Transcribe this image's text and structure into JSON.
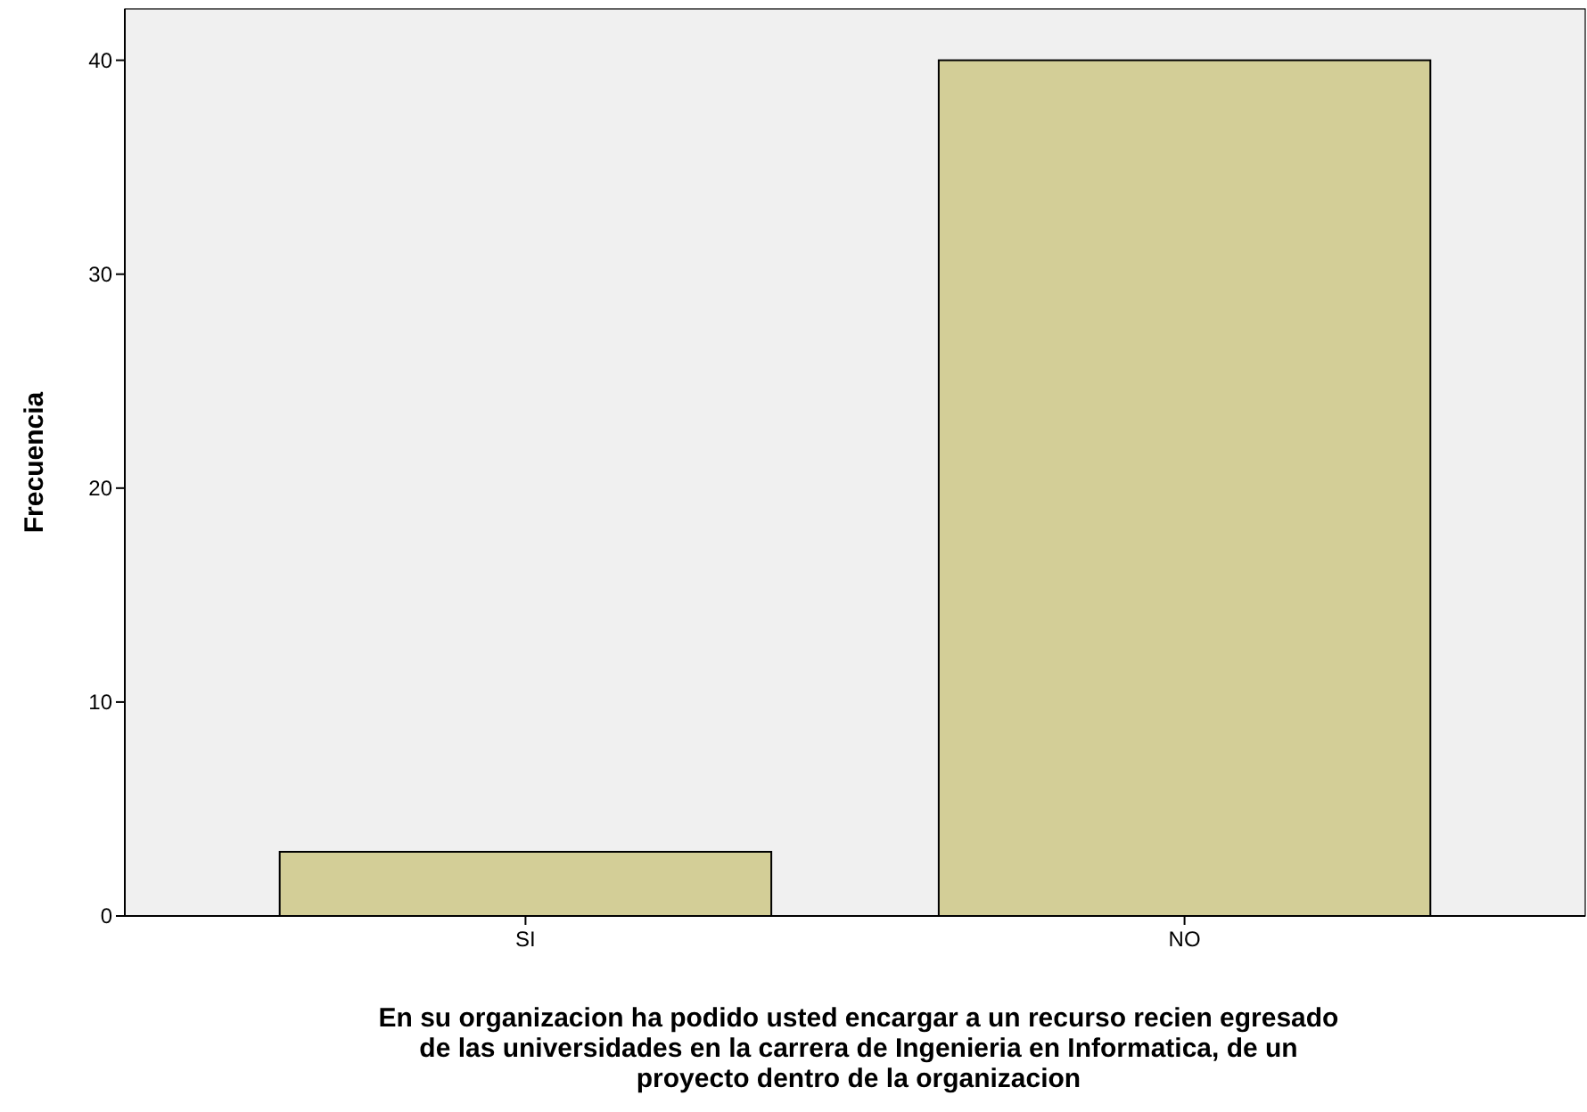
{
  "chart_data": {
    "type": "bar",
    "xlabel": "En su organizacion ha podido usted encargar a un recurso recien egresado de las universidades en la carrera de Ingenieria en Informatica, de un proyecto dentro de la organizacion",
    "ylabel": "Frecuencia",
    "categories": [
      "SI",
      "NO"
    ],
    "values": [
      3,
      40
    ],
    "color": "#d3ce97",
    "ylim": [
      0,
      42.4
    ],
    "yticks": [
      0,
      10,
      20,
      30,
      40
    ],
    "grid": false
  }
}
